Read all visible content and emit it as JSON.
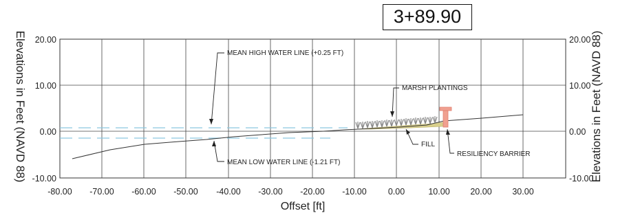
{
  "station": "3+89.90",
  "ylabel_left": "Elevations in Feet (NAVD 88)",
  "ylabel_right": "Elevations in Feet (NAVD 88)",
  "xlabel": "Offset [ft]",
  "y_ticks": [
    "20.00",
    "10.00",
    "0.00",
    "-10.00"
  ],
  "x_ticks": [
    "-80.00",
    "-70.00",
    "-60.00",
    "-50.00",
    "-40.00",
    "-30.00",
    "-20.00",
    "-10.00",
    "0.00",
    "10.00",
    "20.00",
    "30.00"
  ],
  "annotations": {
    "mhw": "MEAN HIGH WATER LINE (+0.25 FT)",
    "mlw": "MEAN LOW WATER LINE (-1.21 FT)",
    "marsh": "MARSH PLANTINGS",
    "fill": "FILL",
    "barrier": "RESILIENCY BARRIER"
  },
  "colors": {
    "water_line": "#8cc8e0",
    "fill": "#d8cf8c",
    "plants": "#8a8a8a",
    "barrier": "#f0a090",
    "grid": "#444444"
  }
}
